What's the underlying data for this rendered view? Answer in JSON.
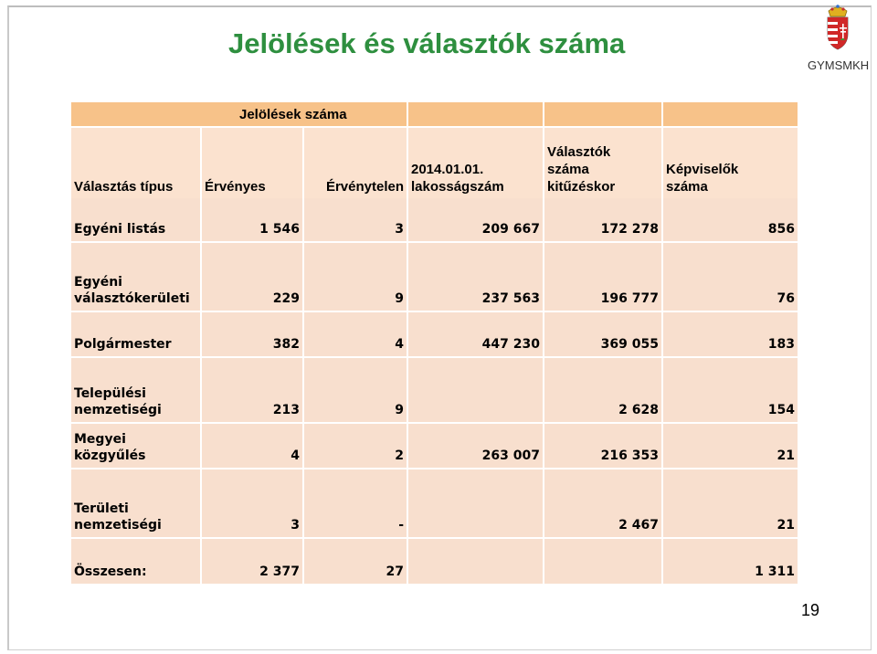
{
  "slide": {
    "title": "Jelölések és választók száma",
    "org": "GYMSMKH",
    "page_number": "19",
    "crest_icon": "hungarian-coat-of-arms-icon"
  },
  "table": {
    "group_header": "Jelölések száma",
    "headers": {
      "type": "Választás típus",
      "valid": "Érvényes",
      "invalid": "Érvénytelen",
      "population": [
        "2014.01.01.",
        "lakosságszám"
      ],
      "voters": [
        "Választók",
        "száma",
        "kitűzéskor"
      ],
      "reps": [
        "Képviselők",
        "száma"
      ]
    },
    "rows": [
      {
        "label": [
          "Egyéni listás"
        ],
        "valid": "1 546",
        "invalid": "3",
        "population": "209 667",
        "voters": "172 278",
        "reps": "856"
      },
      {
        "label": [
          "Egyéni",
          "választókerületi"
        ],
        "valid": "229",
        "invalid": "9",
        "population": "237 563",
        "voters": "196 777",
        "reps": "76"
      },
      {
        "label": [
          "Polgármester"
        ],
        "valid": "382",
        "invalid": "4",
        "population": "447 230",
        "voters": "369 055",
        "reps": "183"
      },
      {
        "label": [
          "Települési",
          "nemzetiségi"
        ],
        "valid": "213",
        "invalid": "9",
        "population": "",
        "voters": "2 628",
        "reps": "154"
      },
      {
        "label": [
          "Megyei",
          "közgyűlés"
        ],
        "valid": "4",
        "invalid": "2",
        "population": "263 007",
        "voters": "216 353",
        "reps": "21"
      },
      {
        "label": [
          "Területi",
          "nemzetiségi"
        ],
        "valid": "3",
        "invalid": "-",
        "population": "",
        "voters": "2 467",
        "reps": "21"
      },
      {
        "label": [
          "Összesen:"
        ],
        "valid": "2 377",
        "invalid": "27",
        "population": "",
        "voters": "",
        "reps": "1 311"
      }
    ]
  },
  "colors": {
    "title": "#2e8f3f",
    "header_band": "#f7c289",
    "cell_fill": "#f8dfce"
  }
}
